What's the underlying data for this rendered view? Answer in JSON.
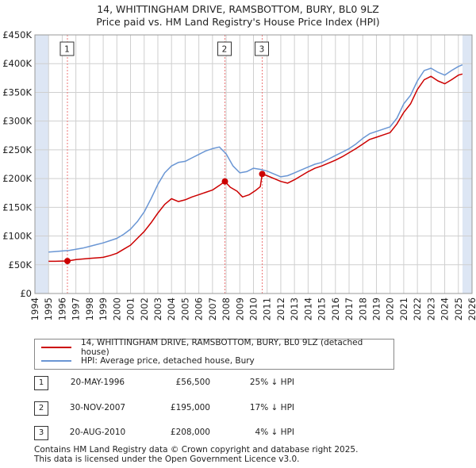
{
  "title_line1": "14, WHITTINGHAM DRIVE, RAMSBOTTOM, BURY, BL0 9LZ",
  "title_line2": "Price paid vs. HM Land Registry's House Price Index (HPI)",
  "colors": {
    "property": "#cc0000",
    "hpi": "#6a96d4",
    "shade": "#dde6f4",
    "vline": "#ee7777",
    "grid": "#cfcfcf"
  },
  "chart_data": {
    "type": "line",
    "title": "Price paid vs. HM Land Registry's House Price Index (HPI)",
    "xlabel": "",
    "ylabel": "",
    "xlim": [
      1994,
      2026
    ],
    "ylim": [
      0,
      450000
    ],
    "yticks": [
      {
        "value": 0,
        "label": "£0"
      },
      {
        "value": 50000,
        "label": "£50K"
      },
      {
        "value": 100000,
        "label": "£100K"
      },
      {
        "value": 150000,
        "label": "£150K"
      },
      {
        "value": 200000,
        "label": "£200K"
      },
      {
        "value": 250000,
        "label": "£250K"
      },
      {
        "value": 300000,
        "label": "£300K"
      },
      {
        "value": 350000,
        "label": "£350K"
      },
      {
        "value": 400000,
        "label": "£400K"
      },
      {
        "value": 450000,
        "label": "£450K"
      }
    ],
    "xticks": [
      "1994",
      "1995",
      "1996",
      "1997",
      "1998",
      "1999",
      "2000",
      "2001",
      "2002",
      "2003",
      "2004",
      "2005",
      "2006",
      "2007",
      "2008",
      "2009",
      "2010",
      "2011",
      "2012",
      "2013",
      "2014",
      "2015",
      "2016",
      "2017",
      "2018",
      "2019",
      "2020",
      "2021",
      "2022",
      "2023",
      "2024",
      "2025",
      "2026"
    ],
    "shaded_periods": [
      [
        1994,
        1995.0
      ],
      [
        2025.3,
        2026
      ]
    ],
    "series": [
      {
        "name": "14, WHITTINGHAM DRIVE, RAMSBOTTOM, BURY, BL0 9LZ (detached house)",
        "x": [
          1995.0,
          1995.5,
          1996.0,
          1996.38,
          1997.0,
          1998.0,
          1999.0,
          1999.5,
          2000.0,
          2000.5,
          2001.0,
          2001.5,
          2002.0,
          2002.5,
          2003.0,
          2003.5,
          2004.0,
          2004.5,
          2005.0,
          2005.5,
          2006.0,
          2006.5,
          2007.0,
          2007.5,
          2007.91,
          2008.3,
          2008.8,
          2009.2,
          2009.7,
          2010.2,
          2010.5,
          2010.64,
          2011.0,
          2011.5,
          2012.0,
          2012.5,
          2013.0,
          2013.5,
          2014.0,
          2014.5,
          2015.0,
          2015.5,
          2016.0,
          2016.5,
          2017.0,
          2017.5,
          2018.0,
          2018.5,
          2019.0,
          2019.5,
          2020.0,
          2020.5,
          2021.0,
          2021.5,
          2022.0,
          2022.5,
          2023.0,
          2023.5,
          2024.0,
          2024.5,
          2025.0,
          2025.3
        ],
        "values": [
          56000,
          56000,
          56500,
          56500,
          59000,
          61000,
          63000,
          66000,
          70000,
          77000,
          84000,
          96000,
          108000,
          123000,
          140000,
          155000,
          165000,
          160000,
          163000,
          168000,
          172000,
          176000,
          180000,
          188000,
          195000,
          185000,
          178000,
          168000,
          172000,
          180000,
          186000,
          208000,
          205000,
          200000,
          195000,
          192000,
          198000,
          205000,
          212000,
          218000,
          222000,
          227000,
          232000,
          238000,
          245000,
          252000,
          260000,
          268000,
          272000,
          276000,
          280000,
          295000,
          315000,
          330000,
          355000,
          372000,
          378000,
          370000,
          365000,
          372000,
          380000,
          382000
        ]
      },
      {
        "name": "HPI: Average price, detached house, Bury",
        "x": [
          1995.0,
          1995.5,
          1996.0,
          1996.5,
          1997.0,
          1997.5,
          1998.0,
          1998.5,
          1999.0,
          1999.5,
          2000.0,
          2000.5,
          2001.0,
          2001.5,
          2002.0,
          2002.5,
          2003.0,
          2003.5,
          2004.0,
          2004.5,
          2005.0,
          2005.5,
          2006.0,
          2006.5,
          2007.0,
          2007.5,
          2008.0,
          2008.5,
          2009.0,
          2009.5,
          2010.0,
          2010.5,
          2011.0,
          2011.5,
          2012.0,
          2012.5,
          2013.0,
          2013.5,
          2014.0,
          2014.5,
          2015.0,
          2015.5,
          2016.0,
          2016.5,
          2017.0,
          2017.5,
          2018.0,
          2018.5,
          2019.0,
          2019.5,
          2020.0,
          2020.5,
          2021.0,
          2021.5,
          2022.0,
          2022.5,
          2023.0,
          2023.5,
          2024.0,
          2024.5,
          2025.0,
          2025.3
        ],
        "values": [
          72000,
          73000,
          74000,
          75000,
          77000,
          79000,
          82000,
          85000,
          88000,
          92000,
          96000,
          103000,
          112000,
          125000,
          142000,
          165000,
          190000,
          210000,
          222000,
          228000,
          230000,
          236000,
          242000,
          248000,
          252000,
          255000,
          243000,
          222000,
          210000,
          212000,
          218000,
          216000,
          213000,
          208000,
          203000,
          205000,
          210000,
          215000,
          220000,
          225000,
          228000,
          234000,
          240000,
          246000,
          252000,
          260000,
          270000,
          278000,
          282000,
          286000,
          290000,
          305000,
          330000,
          345000,
          370000,
          388000,
          392000,
          385000,
          380000,
          388000,
          395000,
          398000
        ]
      }
    ],
    "sales": [
      {
        "label": "1",
        "x": 1996.38,
        "price": 56500
      },
      {
        "label": "2",
        "x": 2007.91,
        "price": 195000
      },
      {
        "label": "3",
        "x": 2010.64,
        "price": 208000
      }
    ]
  },
  "legend": {
    "property": "14, WHITTINGHAM DRIVE, RAMSBOTTOM, BURY, BL0 9LZ (detached house)",
    "hpi": "HPI: Average price, detached house, Bury"
  },
  "sales_table": [
    {
      "num": "1",
      "date": "20-MAY-1996",
      "price": "£56,500",
      "hpi": "25% ↓ HPI"
    },
    {
      "num": "2",
      "date": "30-NOV-2007",
      "price": "£195,000",
      "hpi": "17% ↓ HPI"
    },
    {
      "num": "3",
      "date": "20-AUG-2010",
      "price": "£208,000",
      "hpi": "4% ↓ HPI"
    }
  ],
  "footer_line1": "Contains HM Land Registry data © Crown copyright and database right 2025.",
  "footer_line2": "This data is licensed under the Open Government Licence v3.0."
}
